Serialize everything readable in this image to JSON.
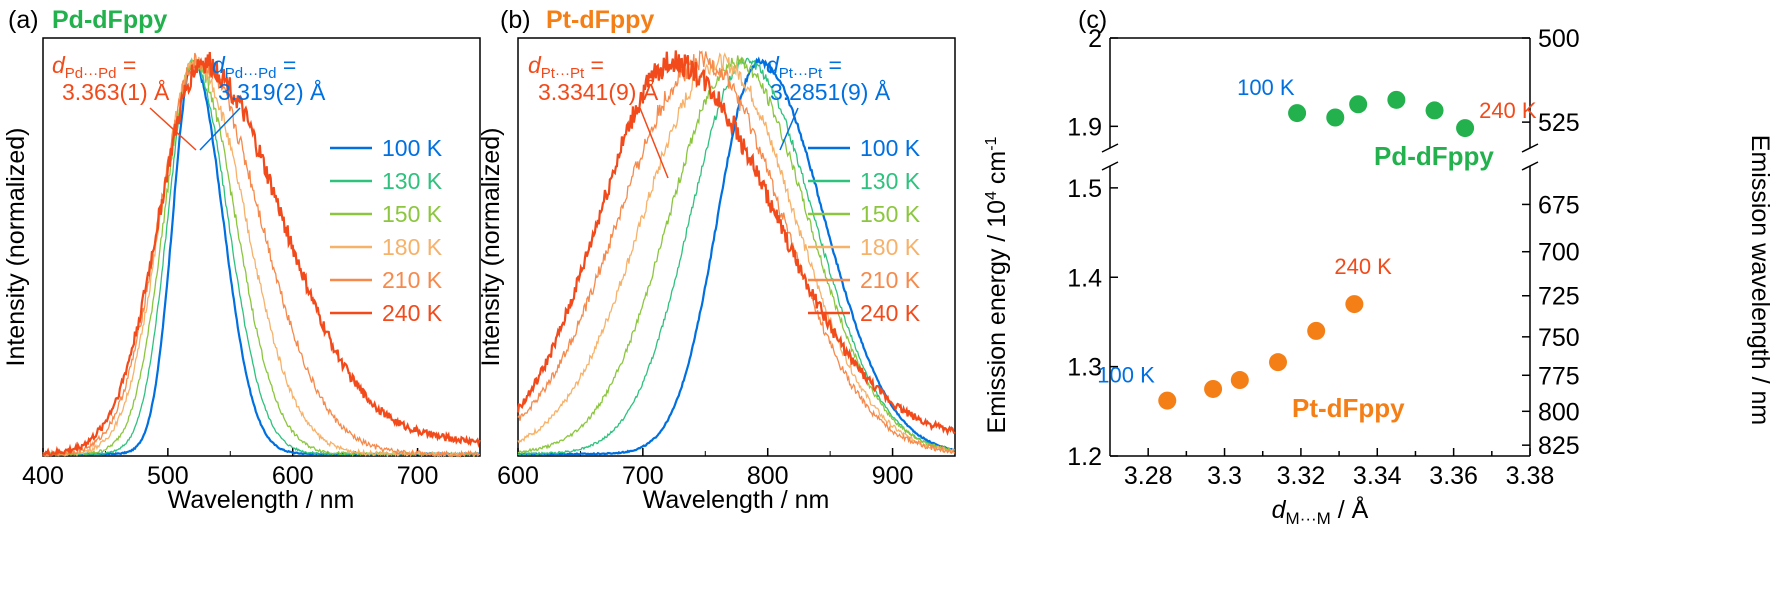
{
  "chart_data": [
    {
      "panel": "a",
      "panel_label": "(a)",
      "type": "line",
      "title": "Pd-dFppy",
      "title_color": "#22b14c",
      "xlabel": "Wavelength / nm",
      "ylabel": "Intensity (normalized)",
      "xlim": [
        400,
        750
      ],
      "ylim": [
        0,
        1.05
      ],
      "xticks": [
        400,
        500,
        600,
        700
      ],
      "peak_fwhm_model": "asymmetric gaussian",
      "series": [
        {
          "name": "100 K",
          "color": "#0070e0",
          "peak": 520,
          "left": 16,
          "right": 24
        },
        {
          "name": "130 K",
          "color": "#2ec27e",
          "peak": 520,
          "left": 20,
          "right": 28
        },
        {
          "name": "150 K",
          "color": "#8cc63f",
          "peak": 521,
          "left": 24,
          "right": 33
        },
        {
          "name": "180 K",
          "color": "#f7b26a",
          "peak": 522,
          "left": 28,
          "right": 40
        },
        {
          "name": "210 K",
          "color": "#f58a4c",
          "peak": 524,
          "left": 31,
          "right": 50
        },
        {
          "name": "240 K",
          "color": "#f24a1a",
          "peak": 528,
          "left": 35,
          "right": 62
        }
      ],
      "annotations": [
        {
          "label_d": "d",
          "label_sub": "Pd···Pd",
          "label_eq": " =",
          "value": "3.363(1) Å",
          "color": "#f24a1a"
        },
        {
          "label_d": "d",
          "label_sub": "Pd···Pd",
          "label_eq": " =",
          "value": "3.319(2) Å",
          "color": "#0070e0"
        }
      ]
    },
    {
      "panel": "b",
      "panel_label": "(b)",
      "type": "line",
      "title": "Pt-dFppy",
      "title_color": "#f57f17",
      "xlabel": "Wavelength / nm",
      "ylabel": "Intensity (normalized)",
      "xlim": [
        600,
        950
      ],
      "ylim": [
        0,
        1.05
      ],
      "xticks": [
        600,
        700,
        800,
        900
      ],
      "series": [
        {
          "name": "100 K",
          "color": "#0070e0",
          "peak": 793,
          "left": 33,
          "right": 52
        },
        {
          "name": "130 K",
          "color": "#2ec27e",
          "peak": 783,
          "left": 45,
          "right": 54
        },
        {
          "name": "150 K",
          "color": "#8cc63f",
          "peak": 775,
          "left": 54,
          "right": 57
        },
        {
          "name": "180 K",
          "color": "#f7b26a",
          "peak": 762,
          "left": 62,
          "right": 60
        },
        {
          "name": "210 K",
          "color": "#f58a4c",
          "peak": 748,
          "left": 67,
          "right": 64
        },
        {
          "name": "240 K",
          "color": "#f24a1a",
          "peak": 725,
          "left": 60,
          "right": 80
        }
      ],
      "annotations": [
        {
          "label_d": "d",
          "label_sub": "Pt···Pt",
          "label_eq": " =",
          "value": "3.3341(9) Å",
          "color": "#f24a1a"
        },
        {
          "label_d": "d",
          "label_sub": "Pt···Pt",
          "label_eq": " =",
          "value": "3.2851(9) Å",
          "color": "#0070e0"
        }
      ]
    },
    {
      "panel": "c",
      "panel_label": "(c)",
      "type": "scatter",
      "xlabel_d": "d",
      "xlabel_sub": "M···M",
      "xlabel_unit": " / Å",
      "ylabel_left": "Emission energy / 10",
      "ylabel_left_sup": "4",
      "ylabel_left_unit": " cm",
      "ylabel_left_sup2": "-1",
      "ylabel_right": "Emission wavelength / nm",
      "xlim": [
        3.27,
        3.38
      ],
      "xticks": [
        "3.28",
        "3.29",
        "3.3",
        "3.31",
        "3.32",
        "3.33",
        "3.34",
        "3.35",
        "3.36",
        "3.37",
        "3.38"
      ],
      "y_axis_break": true,
      "ylim_upper": [
        1.88,
        2.0
      ],
      "ylim_lower": [
        1.2,
        1.52
      ],
      "yticks_left_upper": [
        "1.9",
        "2"
      ],
      "yticks_left_lower": [
        "1.2",
        "1.3",
        "1.4",
        "1.5"
      ],
      "yticks_right_upper": [
        "525",
        "500"
      ],
      "yticks_right_lower": [
        "675",
        "700",
        "725",
        "750",
        "775",
        "800",
        "825"
      ],
      "series": [
        {
          "name": "Pd-dFppy",
          "color": "#22b14c",
          "x": [
            3.319,
            3.329,
            3.335,
            3.345,
            3.355,
            3.363
          ],
          "y": [
            1.915,
            1.91,
            1.925,
            1.93,
            1.918,
            1.898
          ]
        },
        {
          "name": "Pt-dFppy",
          "color": "#f57f17",
          "x": [
            3.285,
            3.297,
            3.304,
            3.314,
            3.324,
            3.334
          ],
          "y": [
            1.262,
            1.275,
            1.285,
            1.305,
            1.34,
            1.37
          ]
        }
      ],
      "point_labels": [
        {
          "text": "100 K",
          "color": "#0070e0",
          "series": 0,
          "index": 0
        },
        {
          "text": "240 K",
          "color": "#f24a1a",
          "series": 0,
          "index": 5
        },
        {
          "text": "240 K",
          "color": "#f24a1a",
          "series": 1,
          "index": 5
        },
        {
          "text": "100 K",
          "color": "#0070e0",
          "series": 1,
          "index": 0
        }
      ]
    }
  ]
}
